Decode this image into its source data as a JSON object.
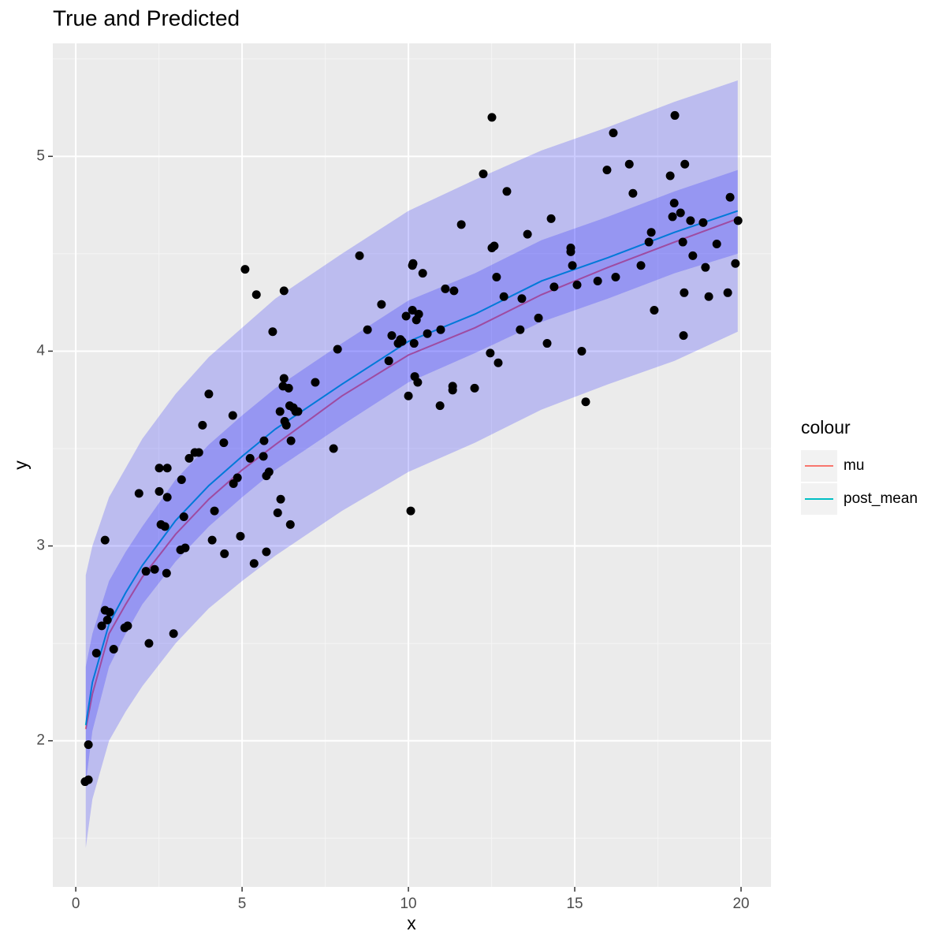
{
  "chart_data": {
    "type": "scatter",
    "title": "True and Predicted",
    "xlabel": "x",
    "ylabel": "y",
    "xlim": [
      -0.69,
      20.9
    ],
    "ylim": [
      1.25,
      5.58
    ],
    "xticks": [
      0,
      5,
      10,
      15,
      20
    ],
    "yticks": [
      2,
      3,
      4,
      5
    ],
    "xminor": [
      2.5,
      7.5,
      12.5,
      17.5
    ],
    "yminor": [
      1.5,
      2.5,
      3.5,
      4.5,
      5.5
    ],
    "grid": true,
    "points": {
      "color": "#000000",
      "x": [
        0.28,
        0.38,
        0.38,
        0.62,
        0.78,
        0.88,
        0.88,
        0.95,
        1.02,
        1.14,
        1.47,
        1.56,
        1.9,
        2.11,
        2.2,
        2.37,
        2.51,
        2.51,
        2.56,
        2.68,
        2.73,
        2.75,
        2.75,
        2.94,
        3.15,
        3.18,
        3.25,
        3.29,
        3.41,
        3.58,
        3.7,
        3.81,
        4.0,
        4.1,
        4.17,
        4.45,
        4.47,
        4.72,
        4.74,
        4.86,
        4.95,
        5.09,
        5.24,
        5.36,
        5.43,
        5.64,
        5.66,
        5.73,
        5.73,
        5.81,
        5.92,
        6.07,
        6.14,
        6.16,
        6.26,
        6.26,
        6.23,
        6.28,
        6.33,
        6.4,
        6.43,
        6.47,
        6.45,
        6.54,
        6.61,
        6.68,
        7.2,
        7.75,
        7.87,
        8.53,
        8.77,
        9.19,
        9.41,
        9.5,
        9.69,
        9.76,
        9.81,
        9.93,
        10.0,
        10.07,
        10.12,
        10.12,
        10.14,
        10.17,
        10.19,
        10.24,
        10.28,
        10.31,
        10.43,
        10.57,
        10.95,
        10.97,
        11.11,
        11.33,
        11.33,
        11.37,
        11.59,
        11.99,
        12.25,
        12.46,
        12.51,
        12.51,
        12.58,
        12.65,
        12.7,
        12.87,
        12.96,
        13.36,
        13.41,
        13.58,
        13.91,
        14.17,
        14.29,
        14.38,
        14.88,
        14.88,
        14.93,
        15.07,
        15.21,
        15.33,
        15.69,
        15.97,
        16.16,
        16.23,
        16.64,
        16.75,
        16.99,
        17.23,
        17.3,
        17.39,
        17.87,
        17.94,
        17.99,
        18.01,
        18.18,
        18.25,
        18.27,
        18.29,
        18.31,
        18.48,
        18.55,
        18.86,
        18.93,
        19.03,
        19.27,
        19.6,
        19.67,
        19.83,
        19.91
      ],
      "y": [
        1.79,
        1.8,
        1.98,
        2.45,
        2.59,
        3.03,
        2.67,
        2.62,
        2.66,
        2.47,
        2.58,
        2.59,
        3.27,
        2.87,
        2.5,
        2.88,
        3.4,
        3.28,
        3.11,
        3.1,
        2.86,
        3.4,
        3.25,
        2.55,
        2.98,
        3.34,
        3.15,
        2.99,
        3.45,
        3.48,
        3.48,
        3.62,
        3.78,
        3.03,
        3.18,
        3.53,
        2.96,
        3.67,
        3.32,
        3.35,
        3.05,
        4.42,
        3.45,
        2.91,
        4.29,
        3.46,
        3.54,
        3.36,
        2.97,
        3.38,
        4.1,
        3.17,
        3.69,
        3.24,
        4.31,
        3.86,
        3.82,
        3.64,
        3.62,
        3.81,
        3.72,
        3.54,
        3.11,
        3.71,
        3.69,
        3.69,
        3.84,
        3.5,
        4.01,
        4.49,
        4.11,
        4.24,
        3.95,
        4.08,
        4.04,
        4.06,
        4.05,
        4.18,
        3.77,
        3.18,
        4.21,
        4.44,
        4.45,
        4.04,
        3.87,
        4.16,
        3.84,
        4.19,
        4.4,
        4.09,
        3.72,
        4.11,
        4.32,
        3.82,
        3.8,
        4.31,
        4.65,
        3.81,
        4.91,
        3.99,
        5.2,
        4.53,
        4.54,
        4.38,
        3.94,
        4.28,
        4.82,
        4.11,
        4.27,
        4.6,
        4.17,
        4.04,
        4.68,
        4.33,
        4.53,
        4.51,
        4.44,
        4.34,
        4.0,
        3.74,
        4.36,
        4.93,
        5.12,
        4.38,
        4.96,
        4.81,
        4.44,
        4.56,
        4.61,
        4.21,
        4.9,
        4.69,
        4.76,
        5.21,
        4.71,
        4.56,
        4.08,
        4.3,
        4.96,
        4.67,
        4.49,
        4.66,
        4.43,
        4.28,
        4.55,
        4.3,
        4.79,
        4.45,
        4.67
      ]
    },
    "line_x": [
      0.3,
      0.5,
      1,
      1.5,
      2,
      3,
      4,
      5,
      6,
      8,
      10,
      12,
      14,
      16,
      18,
      19.9
    ],
    "series": [
      {
        "name": "mu",
        "color": "#F8766D",
        "values": [
          2.06,
          2.24,
          2.55,
          2.7,
          2.84,
          3.06,
          3.24,
          3.39,
          3.52,
          3.77,
          3.98,
          4.12,
          4.29,
          4.43,
          4.56,
          4.68
        ]
      },
      {
        "name": "post_mean",
        "color": "#00BFC4",
        "values": [
          2.08,
          2.3,
          2.6,
          2.76,
          2.9,
          3.13,
          3.31,
          3.46,
          3.6,
          3.83,
          4.05,
          4.19,
          4.36,
          4.48,
          4.61,
          4.72
        ]
      }
    ],
    "bands": [
      {
        "lower": [
          1.45,
          1.7,
          2.0,
          2.15,
          2.28,
          2.5,
          2.68,
          2.82,
          2.95,
          3.18,
          3.38,
          3.53,
          3.7,
          3.83,
          3.95,
          4.1
        ],
        "upper": [
          2.85,
          3.0,
          3.25,
          3.4,
          3.55,
          3.78,
          3.97,
          4.12,
          4.27,
          4.5,
          4.72,
          4.88,
          5.03,
          5.15,
          5.28,
          5.39
        ]
      },
      {
        "lower": [
          1.78,
          2.05,
          2.38,
          2.55,
          2.7,
          2.92,
          3.1,
          3.25,
          3.39,
          3.62,
          3.84,
          3.99,
          4.15,
          4.27,
          4.4,
          4.5
        ],
        "upper": [
          2.38,
          2.55,
          2.82,
          2.97,
          3.1,
          3.34,
          3.52,
          3.67,
          3.81,
          4.04,
          4.26,
          4.4,
          4.57,
          4.69,
          4.82,
          4.93
        ]
      }
    ],
    "band_color": "#0000ff",
    "band_opacity": 0.2,
    "legend_title": "colour",
    "legend_position": "right"
  }
}
